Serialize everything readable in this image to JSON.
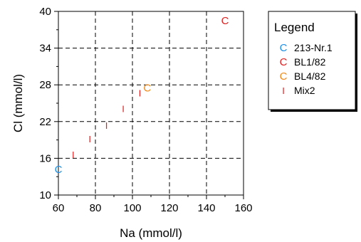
{
  "chart_data": {
    "type": "scatter",
    "xlabel": "Na (mmol/l)",
    "ylabel": "Cl (mmol/l)",
    "xlim": [
      60,
      160
    ],
    "ylim": [
      10,
      40
    ],
    "xticks": [
      60,
      80,
      100,
      120,
      140,
      160
    ],
    "yticks": [
      10,
      16,
      22,
      28,
      34,
      40
    ],
    "grid": true,
    "legend_title": "Legend",
    "legend_position": "right",
    "series": [
      {
        "name": "213-Nr.1",
        "symbol": "C",
        "color": "#1e8fe6",
        "points": [
          [
            60,
            14.2
          ]
        ]
      },
      {
        "name": "BL1/82",
        "symbol": "C",
        "color": "#e02020",
        "points": [
          [
            150,
            38.5
          ]
        ]
      },
      {
        "name": "BL4/82",
        "symbol": "C",
        "color": "#f08a1a",
        "points": [
          [
            108,
            27.5
          ]
        ]
      },
      {
        "name": "Mix2",
        "symbol": "I",
        "color": "#e02020",
        "points": [
          [
            68,
            16.6
          ],
          [
            77,
            19.2
          ],
          [
            86,
            21.4
          ],
          [
            95,
            24.1
          ],
          [
            104,
            26.7
          ]
        ]
      }
    ]
  }
}
